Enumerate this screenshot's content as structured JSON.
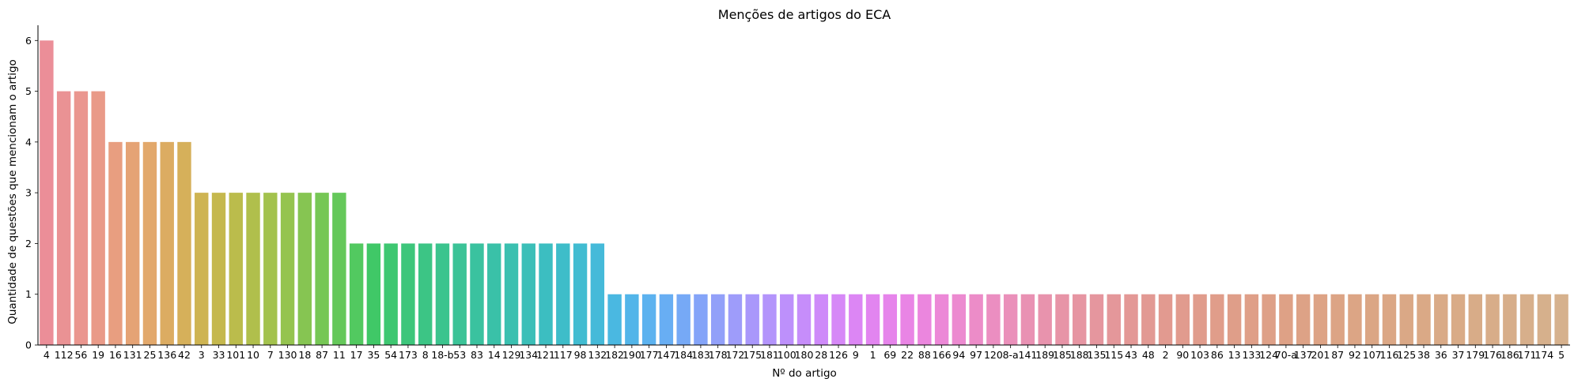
{
  "chart_data": {
    "type": "bar",
    "title": "Menções de artigos do ECA",
    "xlabel": "Nº do artigo",
    "ylabel": "Quantidade de questões que mencionam o artigo",
    "ylim": [
      0,
      6.3
    ],
    "yticks": [
      0,
      1,
      2,
      3,
      4,
      5,
      6
    ],
    "grid": false,
    "categories": [
      "4",
      "112",
      "56",
      "19",
      "16",
      "131",
      "25",
      "136",
      "42",
      "3",
      "33",
      "101",
      "10",
      "7",
      "130",
      "18",
      "87",
      "11",
      "17",
      "35",
      "54",
      "173",
      "8",
      "18-b",
      "53",
      "83",
      "14",
      "129",
      "134",
      "121",
      "117",
      "98",
      "132",
      "182",
      "190",
      "177",
      "147",
      "184",
      "183",
      "178",
      "172",
      "175",
      "181",
      "100",
      "180",
      "28",
      "126",
      "9",
      "1",
      "69",
      "22",
      "88",
      "166",
      "94",
      "97",
      "120",
      "8-a",
      "141",
      "189",
      "185",
      "188",
      "135",
      "115",
      "43",
      "48",
      "2",
      "90",
      "103",
      "86",
      "13",
      "133",
      "124",
      "70-a",
      "137",
      "201",
      "87",
      "92",
      "107",
      "116",
      "125",
      "38",
      "36",
      "37",
      "179",
      "176",
      "186",
      "171",
      "174",
      "5"
    ],
    "values": [
      6,
      5,
      5,
      5,
      4,
      4,
      4,
      4,
      4,
      3,
      3,
      3,
      3,
      3,
      3,
      3,
      3,
      3,
      2,
      2,
      2,
      2,
      2,
      2,
      2,
      2,
      2,
      2,
      2,
      2,
      2,
      2,
      2,
      1,
      1,
      1,
      1,
      1,
      1,
      1,
      1,
      1,
      1,
      1,
      1,
      1,
      1,
      1,
      1,
      1,
      1,
      1,
      1,
      1,
      1,
      1,
      1,
      1,
      1,
      1,
      1,
      1,
      1,
      1,
      1,
      1,
      1,
      1,
      1,
      1,
      1,
      1,
      1,
      1,
      1,
      1,
      1,
      1,
      1,
      1,
      1,
      1,
      1,
      1,
      1,
      1,
      1,
      1,
      1
    ],
    "colors": [
      "#eb8e98",
      "#ea9294",
      "#ea968f",
      "#e99a88",
      "#e89e80",
      "#e5a375",
      "#e2a86b",
      "#dcac62",
      "#d6b05a",
      "#ceb452",
      "#c5b84d",
      "#bbbc4c",
      "#b0bf4c",
      "#a3c24d",
      "#95c44f",
      "#86c552",
      "#76c755",
      "#65c85a",
      "#52c960",
      "#40c867",
      "#3ec771",
      "#3dc67b",
      "#3cc585",
      "#3bc48e",
      "#3bc397",
      "#3ac29f",
      "#3ac1a8",
      "#3ac0b0",
      "#3bbfb8",
      "#3cbec1",
      "#3ebdc9",
      "#41bcd1",
      "#45bad9",
      "#4ab8e1",
      "#52b5e9",
      "#5cb2ef",
      "#68aef3",
      "#76a9f6",
      "#84a4f8",
      "#92a0f9",
      "#9e9cfa",
      "#a998fb",
      "#b394fb",
      "#bd90fb",
      "#c68dfa",
      "#ce8af9",
      "#d688f7",
      "#dc86f4",
      "#e285f0",
      "#e684eb",
      "#e985e5",
      "#eb86de",
      "#ec88d7",
      "#ec8ad0",
      "#ec8cc8",
      "#eb8ec1",
      "#ea90ba",
      "#e991b3",
      "#e893ad",
      "#e794a7",
      "#e695a2",
      "#e5969e",
      "#e4979a",
      "#e39896",
      "#e29993",
      "#e29a90",
      "#e19b8e",
      "#e09c8c",
      "#e09d8a",
      "#df9e89",
      "#df9f88",
      "#dea087",
      "#dea186",
      "#dda286",
      "#dda385",
      "#dca485",
      "#dca585",
      "#dba685",
      "#dba785",
      "#daa886",
      "#daa986",
      "#d9aa87",
      "#d9ab87",
      "#d8ac88",
      "#d8ad89",
      "#d7ae8a",
      "#d7af8b",
      "#d6b08c",
      "#d6b18d"
    ]
  }
}
